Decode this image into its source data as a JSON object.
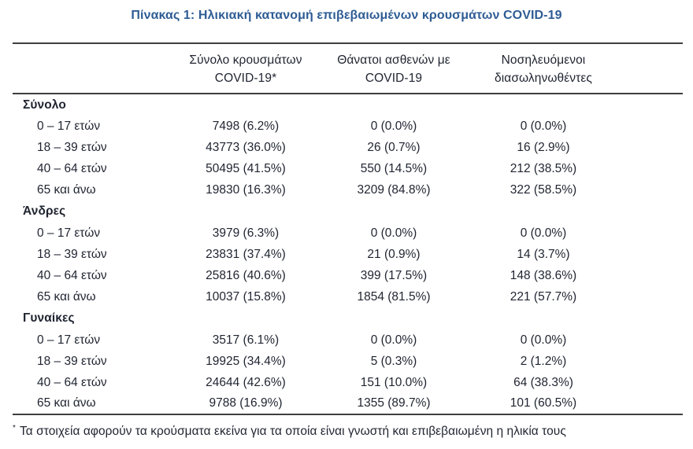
{
  "title": "Πίνακας 1: Ηλικιακή κατανομή επιβεβαιωμένων κρουσμάτων COVID-19",
  "colors": {
    "title": "#2e5c94",
    "ink": "#1f2430",
    "rule": "#3f3f3f"
  },
  "table": {
    "columns": [
      {
        "line1": "Σύνολο κρουσμάτων",
        "line2": "COVID-19*"
      },
      {
        "line1": "Θάνατοι ασθενών με",
        "line2": "COVID-19"
      },
      {
        "line1": "Νοσηλευόμενοι",
        "line2": "διασωληνωθέντες"
      }
    ],
    "sections": [
      {
        "label": "Σύνολο",
        "rows": [
          {
            "label": "0 – 17 ετών",
            "cases": "7498 (6.2%)",
            "deaths": "0 (0.0%)",
            "intubated": "0 (0.0%)"
          },
          {
            "label": "18 – 39 ετών",
            "cases": "43773 (36.0%)",
            "deaths": "26 (0.7%)",
            "intubated": "16 (2.9%)"
          },
          {
            "label": "40 – 64 ετών",
            "cases": "50495 (41.5%)",
            "deaths": "550 (14.5%)",
            "intubated": "212 (38.5%)"
          },
          {
            "label": "65 και άνω",
            "cases": "19830 (16.3%)",
            "deaths": "3209 (84.8%)",
            "intubated": "322 (58.5%)"
          }
        ]
      },
      {
        "label": "Άνδρες",
        "rows": [
          {
            "label": "0 – 17 ετών",
            "cases": "3979 (6.3%)",
            "deaths": "0 (0.0%)",
            "intubated": "0 (0.0%)"
          },
          {
            "label": "18 – 39 ετών",
            "cases": "23831 (37.4%)",
            "deaths": "21 (0.9%)",
            "intubated": "14 (3.7%)"
          },
          {
            "label": "40 – 64 ετών",
            "cases": "25816 (40.6%)",
            "deaths": "399 (17.5%)",
            "intubated": "148 (38.6%)"
          },
          {
            "label": "65 και άνω",
            "cases": "10037 (15.8%)",
            "deaths": "1854 (81.5%)",
            "intubated": "221 (57.7%)"
          }
        ]
      },
      {
        "label": "Γυναίκες",
        "rows": [
          {
            "label": "0 – 17 ετών",
            "cases": "3517 (6.1%)",
            "deaths": "0 (0.0%)",
            "intubated": "0 (0.0%)"
          },
          {
            "label": "18 – 39 ετών",
            "cases": "19925 (34.4%)",
            "deaths": "5 (0.3%)",
            "intubated": "2 (1.2%)"
          },
          {
            "label": "40 – 64 ετών",
            "cases": "24644 (42.6%)",
            "deaths": "151 (10.0%)",
            "intubated": "64 (38.3%)"
          },
          {
            "label": "65 και άνω",
            "cases": "9788 (16.9%)",
            "deaths": "1355 (89.7%)",
            "intubated": "101 (60.5%)"
          }
        ]
      }
    ]
  },
  "footnote": {
    "marker": "*",
    "text": "Τα στοιχεία αφορούν τα κρούσματα εκείνα για τα οποία είναι γνωστή και επιβεβαιωμένη η ηλικία τους"
  }
}
